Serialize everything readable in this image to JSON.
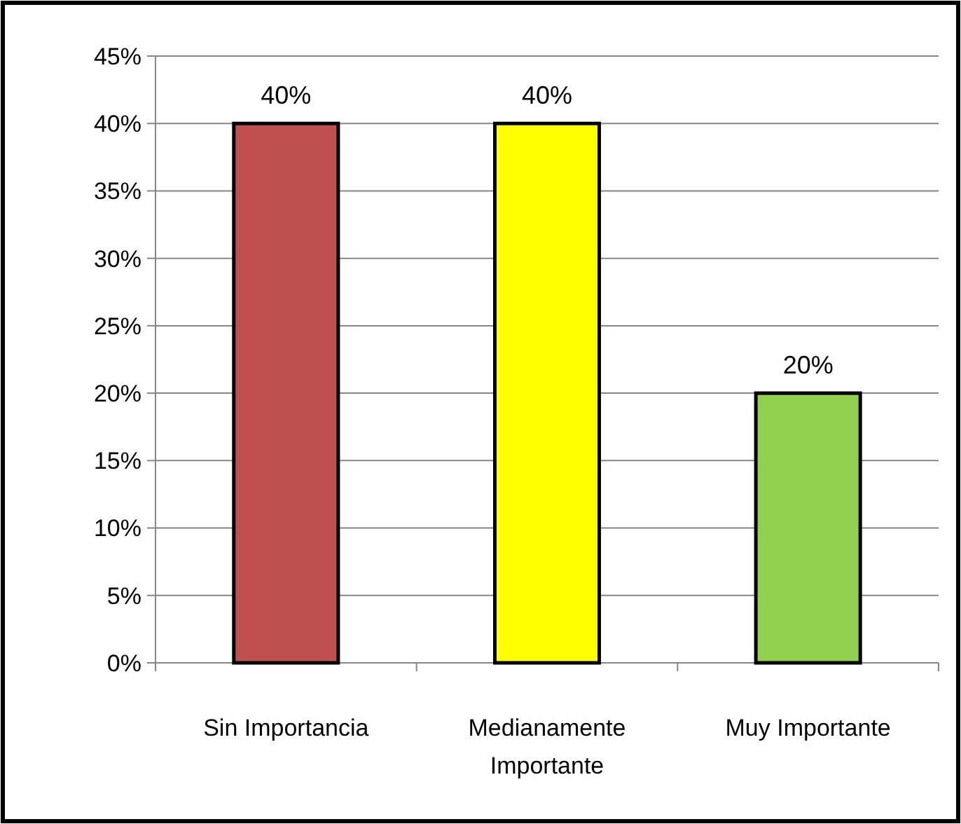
{
  "chart_data": {
    "type": "bar",
    "categories": [
      "Sin Importancia",
      "Medianamente Importante",
      "Muy Importante"
    ],
    "values": [
      40,
      40,
      20
    ],
    "colors": [
      "#c0504d",
      "#ffff00",
      "#92d050"
    ],
    "value_labels": [
      "40%",
      "40%",
      "20%"
    ],
    "ylim": [
      0,
      45
    ],
    "yticks": [
      {
        "value": 0,
        "label": "0%"
      },
      {
        "value": 5,
        "label": "5%"
      },
      {
        "value": 10,
        "label": "10%"
      },
      {
        "value": 15,
        "label": "15%"
      },
      {
        "value": 20,
        "label": "20%"
      },
      {
        "value": 25,
        "label": "25%"
      },
      {
        "value": 30,
        "label": "30%"
      },
      {
        "value": 35,
        "label": "35%"
      },
      {
        "value": 40,
        "label": "40%"
      },
      {
        "value": 45,
        "label": "45%"
      }
    ],
    "grid": "y"
  }
}
